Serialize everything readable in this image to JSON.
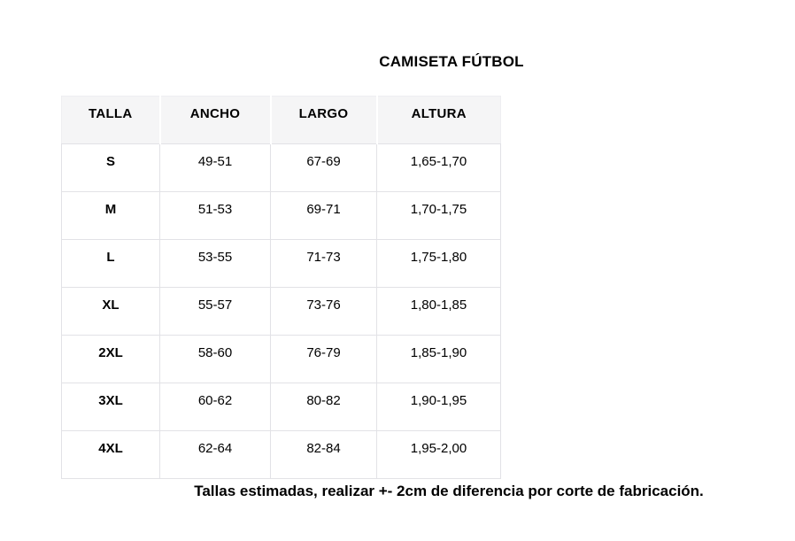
{
  "title": "CAMISETA FÚTBOL",
  "size_table": {
    "headers": [
      "TALLA",
      "ANCHO",
      "LARGO",
      "ALTURA"
    ],
    "rows": [
      [
        "S",
        "49-51",
        "67-69",
        "1,65-1,70"
      ],
      [
        "M",
        "51-53",
        "69-71",
        "1,70-1,75"
      ],
      [
        "L",
        "53-55",
        "71-73",
        "1,75-1,80"
      ],
      [
        "XL",
        "55-57",
        "73-76",
        "1,80-1,85"
      ],
      [
        "2XL",
        "58-60",
        "76-79",
        "1,85-1,90"
      ],
      [
        "3XL",
        "60-62",
        "80-82",
        "1,90-1,95"
      ],
      [
        "4XL",
        "62-64",
        "82-84",
        "1,95-2,00"
      ]
    ]
  },
  "footer_note": "Tallas estimadas, realizar +- 2cm de diferencia por corte de fabricación.",
  "colors": {
    "background": "#ffffff",
    "header_bg": "#f5f5f6",
    "border": "#e2e2e6",
    "text": "#000000"
  }
}
